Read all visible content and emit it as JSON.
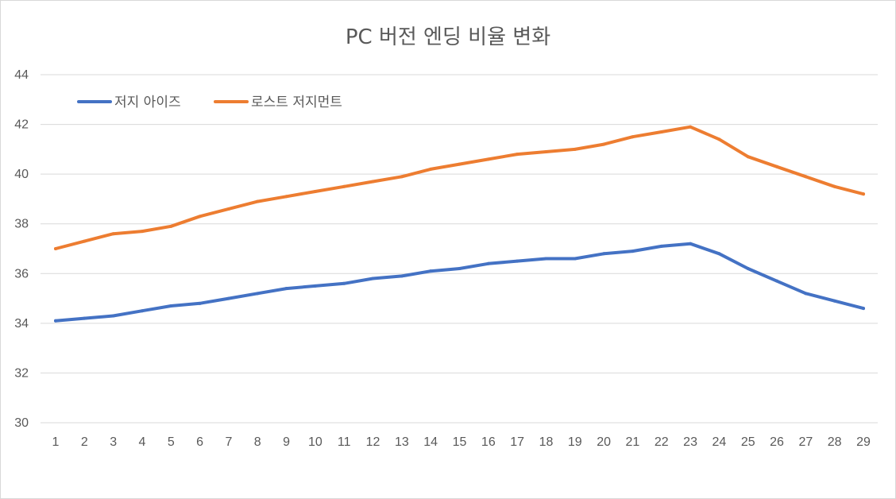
{
  "chart_data": {
    "type": "line",
    "title": "PC 버전 엔딩 비율 변화",
    "xlabel": "",
    "ylabel": "",
    "ylim": [
      30,
      44
    ],
    "ytick_step": 2,
    "grid": true,
    "legend_position": "top-left",
    "categories": [
      "1",
      "2",
      "3",
      "4",
      "5",
      "6",
      "7",
      "8",
      "9",
      "10",
      "11",
      "12",
      "13",
      "14",
      "15",
      "16",
      "17",
      "18",
      "19",
      "20",
      "21",
      "22",
      "23",
      "24",
      "25",
      "26",
      "27",
      "28",
      "29"
    ],
    "series": [
      {
        "name": "저지 아이즈",
        "color": "#4472C4",
        "values": [
          34.1,
          34.2,
          34.3,
          34.5,
          34.7,
          34.8,
          35.0,
          35.2,
          35.4,
          35.5,
          35.6,
          35.8,
          35.9,
          36.1,
          36.2,
          36.4,
          36.5,
          36.6,
          36.6,
          36.8,
          36.9,
          37.1,
          37.2,
          36.8,
          36.2,
          35.7,
          35.2,
          34.9,
          34.6
        ]
      },
      {
        "name": "로스트 저지먼트",
        "color": "#ED7D31",
        "values": [
          37.0,
          37.3,
          37.6,
          37.7,
          37.9,
          38.3,
          38.6,
          38.9,
          39.1,
          39.3,
          39.5,
          39.7,
          39.9,
          40.2,
          40.4,
          40.6,
          40.8,
          40.9,
          41.0,
          41.2,
          41.5,
          41.7,
          41.9,
          41.4,
          40.7,
          40.3,
          39.9,
          39.5,
          39.2
        ]
      }
    ]
  }
}
